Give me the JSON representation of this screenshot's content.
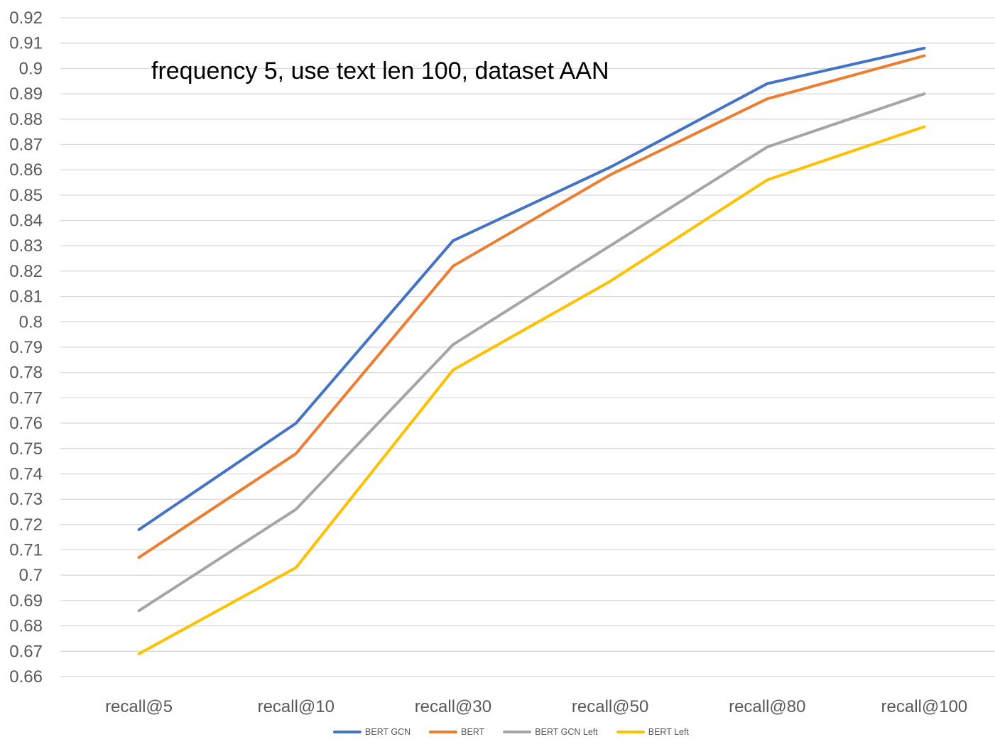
{
  "chart_data": {
    "type": "line",
    "title": "frequency 5, use text len 100, dataset AAN",
    "xlabel": "",
    "ylabel": "",
    "categories": [
      "recall@5",
      "recall@10",
      "recall@30",
      "recall@50",
      "recall@80",
      "recall@100"
    ],
    "yticks": [
      "0.92",
      "0.91",
      "0.9",
      "0.89",
      "0.88",
      "0.87",
      "0.86",
      "0.85",
      "0.84",
      "0.83",
      "0.82",
      "0.81",
      "0.8",
      "0.79",
      "0.78",
      "0.77",
      "0.76",
      "0.75",
      "0.74",
      "0.73",
      "0.72",
      "0.71",
      "0.7",
      "0.69",
      "0.68",
      "0.67",
      "0.66"
    ],
    "ylim": [
      0.66,
      0.92
    ],
    "grid": true,
    "legend_position": "bottom",
    "colors": {
      "gridline": "#D9D9D9",
      "axis_text": "#595959",
      "title_text": "#000000"
    },
    "series": [
      {
        "name": "BERT GCN",
        "color": "#4472C4",
        "values": [
          0.718,
          0.76,
          0.832,
          0.861,
          0.894,
          0.908
        ]
      },
      {
        "name": "BERT",
        "color": "#ED7D31",
        "values": [
          0.707,
          0.748,
          0.822,
          0.858,
          0.888,
          0.905
        ]
      },
      {
        "name": "BERT GCN Left",
        "color": "#A5A5A5",
        "values": [
          0.686,
          0.726,
          0.791,
          0.83,
          0.869,
          0.89
        ]
      },
      {
        "name": "BERT Left",
        "color": "#FFC000",
        "values": [
          0.669,
          0.703,
          0.781,
          0.816,
          0.856,
          0.877
        ]
      }
    ]
  }
}
